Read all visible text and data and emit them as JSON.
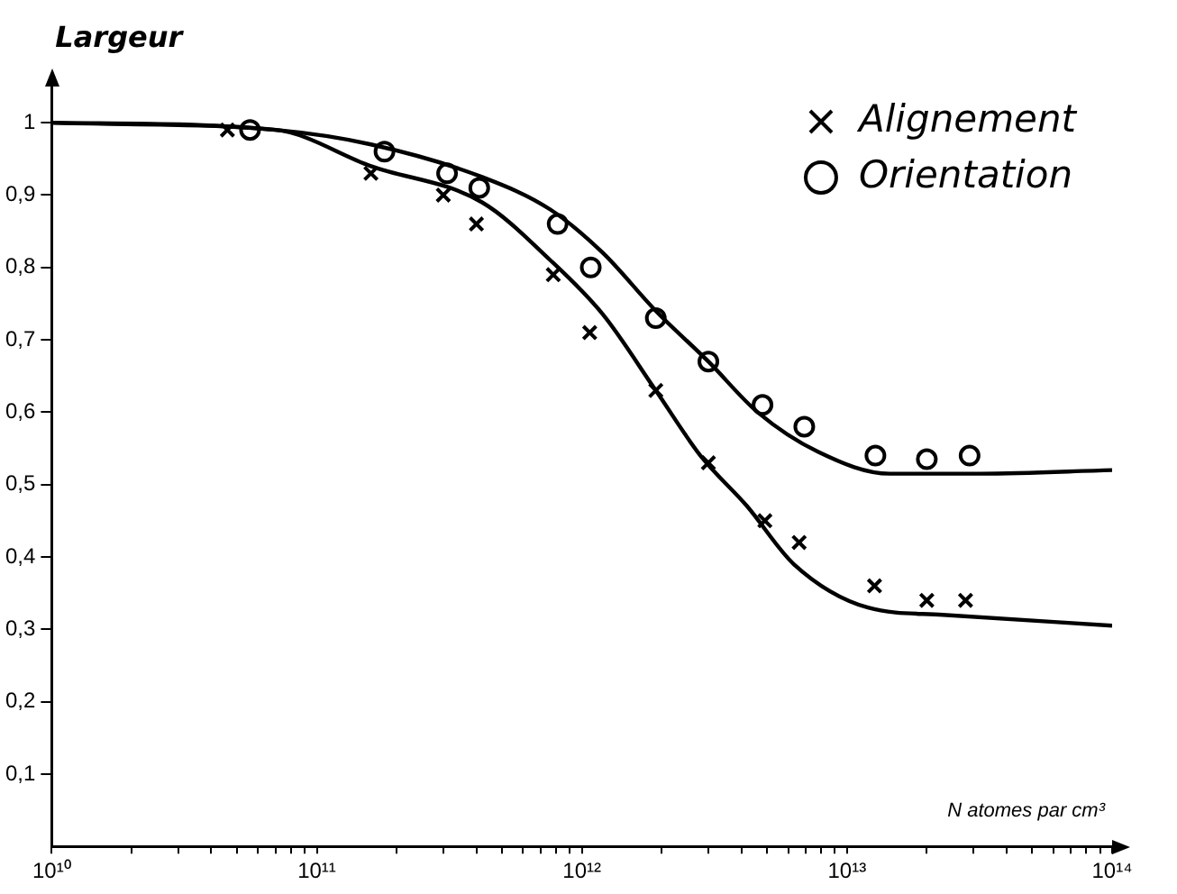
{
  "chart_data": {
    "type": "scatter",
    "ylabel": "Largeur",
    "xlabel": "N atomes par cm³",
    "log": "x",
    "grid": false,
    "legend": "top right",
    "xlim": [
      10000000000.0,
      100000000000000.0
    ],
    "ylim": [
      0,
      1.05
    ],
    "xticks": [
      {
        "value": 10000000000.0,
        "label": "10¹⁰"
      },
      {
        "value": 20000000000.0,
        "label": null
      },
      {
        "value": 30000000000.0,
        "label": null
      },
      {
        "value": 40000000000.0,
        "label": null
      },
      {
        "value": 50000000000.0,
        "label": null
      },
      {
        "value": 60000000000.0,
        "label": null
      },
      {
        "value": 70000000000.0,
        "label": null
      },
      {
        "value": 80000000000.0,
        "label": null
      },
      {
        "value": 90000000000.0,
        "label": null
      },
      {
        "value": 100000000000.0,
        "label": "10¹¹"
      },
      {
        "value": 200000000000.0,
        "label": null
      },
      {
        "value": 300000000000.0,
        "label": null
      },
      {
        "value": 400000000000.0,
        "label": null
      },
      {
        "value": 500000000000.0,
        "label": null
      },
      {
        "value": 600000000000.0,
        "label": null
      },
      {
        "value": 700000000000.0,
        "label": null
      },
      {
        "value": 800000000000.0,
        "label": null
      },
      {
        "value": 900000000000.0,
        "label": null
      },
      {
        "value": 1000000000000.0,
        "label": "10¹²"
      },
      {
        "value": 2000000000000.0,
        "label": null
      },
      {
        "value": 3000000000000.0,
        "label": null
      },
      {
        "value": 4000000000000.0,
        "label": null
      },
      {
        "value": 5000000000000.0,
        "label": null
      },
      {
        "value": 6000000000000.0,
        "label": null
      },
      {
        "value": 7000000000000.0,
        "label": null
      },
      {
        "value": 8000000000000.0,
        "label": null
      },
      {
        "value": 9000000000000.0,
        "label": null
      },
      {
        "value": 10000000000000.0,
        "label": "10¹³"
      },
      {
        "value": 20000000000000.0,
        "label": null
      },
      {
        "value": 30000000000000.0,
        "label": null
      },
      {
        "value": 40000000000000.0,
        "label": null
      },
      {
        "value": 50000000000000.0,
        "label": null
      },
      {
        "value": 60000000000000.0,
        "label": null
      },
      {
        "value": 70000000000000.0,
        "label": null
      },
      {
        "value": 80000000000000.0,
        "label": null
      },
      {
        "value": 90000000000000.0,
        "label": null
      },
      {
        "value": 100000000000000.0,
        "label": "10¹⁴"
      }
    ],
    "yticks": [
      {
        "value": 0.1,
        "label": "0,1"
      },
      {
        "value": 0.2,
        "label": "0,2"
      },
      {
        "value": 0.3,
        "label": "0,3"
      },
      {
        "value": 0.4,
        "label": "0,4"
      },
      {
        "value": 0.5,
        "label": "0,5"
      },
      {
        "value": 0.6,
        "label": "0,6"
      },
      {
        "value": 0.7,
        "label": "0,7"
      },
      {
        "value": 0.8,
        "label": "0,8"
      },
      {
        "value": 0.9,
        "label": "0,9"
      },
      {
        "value": 1,
        "label": "1"
      }
    ],
    "series": [
      {
        "name": "Alignement",
        "marker": "cross",
        "color": "#000000",
        "x": [
          46000000000.0,
          160000000000.0,
          300000000000.0,
          400000000000.0,
          780000000000.0,
          1070000000000.0,
          1900000000000.0,
          3000000000000.0,
          4900000000000.0,
          6600000000000.0,
          12700000000000.0,
          20000000000000.0,
          28000000000000.0
        ],
        "values": [
          0.99,
          0.93,
          0.9,
          0.86,
          0.79,
          0.71,
          0.63,
          0.53,
          0.45,
          0.42,
          0.36,
          0.34,
          0.34
        ]
      },
      {
        "name": "Orientation",
        "marker": "circle",
        "color": "#000000",
        "x": [
          56000000000.0,
          180000000000.0,
          310000000000.0,
          410000000000.0,
          810000000000.0,
          1080000000000.0,
          1900000000000.0,
          3000000000000.0,
          4800000000000.0,
          6900000000000.0,
          12800000000000.0,
          20000000000000.0,
          29000000000000.0
        ],
        "values": [
          0.99,
          0.96,
          0.93,
          0.91,
          0.86,
          0.8,
          0.73,
          0.67,
          0.61,
          0.58,
          0.54,
          0.535,
          0.54
        ]
      },
      {
        "type": "line",
        "marker": "none",
        "line_style": "solid",
        "color": "#000000",
        "x": [
          10000000000.0,
          70000000000.0,
          160000000000.0,
          420000000000.0,
          760000000000.0,
          1200000000000.0,
          1900000000000.0,
          3000000000000.0,
          4600000000000.0,
          7800000000000.0,
          14500000000000.0,
          32000000000000.0,
          100000000000000.0
        ],
        "values": [
          1.0,
          0.99,
          0.97,
          0.925,
          0.88,
          0.82,
          0.74,
          0.67,
          0.6,
          0.545,
          0.515,
          0.515,
          0.52
        ]
      },
      {
        "type": "line",
        "marker": "none",
        "line_style": "solid",
        "color": "#000000",
        "x": [
          10000000000.0,
          70000000000.0,
          160000000000.0,
          420000000000.0,
          760000000000.0,
          1200000000000.0,
          1900000000000.0,
          2800000000000.0,
          4200000000000.0,
          6300000000000.0,
          12000000000000.0,
          23000000000000.0,
          100000000000000.0
        ],
        "values": [
          1.0,
          0.99,
          0.94,
          0.89,
          0.81,
          0.735,
          0.63,
          0.54,
          0.47,
          0.39,
          0.33,
          0.32,
          0.305
        ]
      }
    ]
  }
}
